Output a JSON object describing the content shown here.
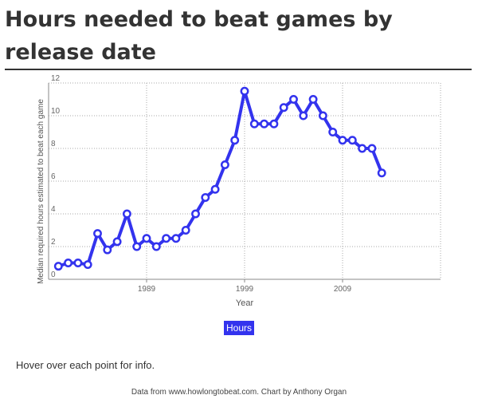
{
  "page": {
    "title": "Hours needed to beat games by release date",
    "hint": "Hover over each point for info.",
    "footer": "Data from www.howlongtobeat.com. Chart by Anthony Organ"
  },
  "colors": {
    "series": "#3333ee",
    "grid": "#aaaaaa",
    "axis": "#888888",
    "text": "#333333"
  },
  "chart_data": {
    "type": "line",
    "title": "Hours needed to beat games by release date",
    "xlabel": "Year",
    "ylabel": "Median required hours estimated to beat each game",
    "xlim": [
      1979,
      2019
    ],
    "ylim": [
      0,
      12
    ],
    "x_ticks": [
      1989,
      1999,
      2009
    ],
    "y_ticks": [
      0,
      2,
      4,
      6,
      8,
      10,
      12
    ],
    "grid": true,
    "legend": "bottom-center",
    "series": [
      {
        "name": "Hours",
        "x": [
          1980,
          1981,
          1982,
          1983,
          1984,
          1985,
          1986,
          1987,
          1988,
          1989,
          1990,
          1991,
          1992,
          1993,
          1994,
          1995,
          1996,
          1997,
          1998,
          1999,
          2000,
          2001,
          2002,
          2003,
          2004,
          2005,
          2006,
          2007,
          2008,
          2009,
          2010,
          2011,
          2012,
          2013
        ],
        "y": [
          0.8,
          1.0,
          1.0,
          0.9,
          2.8,
          1.8,
          2.3,
          4.0,
          2.0,
          2.5,
          2.0,
          2.5,
          2.5,
          3.0,
          4.0,
          5.0,
          5.5,
          7.0,
          8.5,
          11.5,
          9.5,
          9.5,
          9.5,
          10.5,
          11.0,
          10.0,
          11.0,
          10.0,
          9.0,
          8.5,
          8.5,
          8.0,
          8.0,
          6.5
        ]
      }
    ]
  }
}
